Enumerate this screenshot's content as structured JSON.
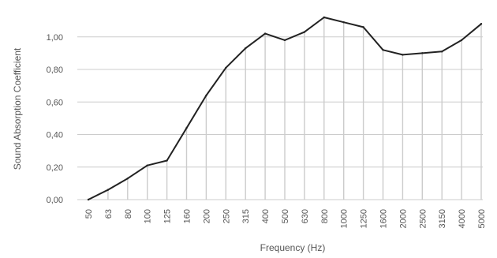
{
  "chart_data": {
    "type": "line",
    "title": "",
    "xlabel": "Frequency (Hz)",
    "ylabel": "Sound Absorption Coefficient",
    "x": [
      "50",
      "63",
      "80",
      "100",
      "125",
      "160",
      "200",
      "250",
      "315",
      "400",
      "500",
      "630",
      "800",
      "1000",
      "1250",
      "1600",
      "2000",
      "2500",
      "3150",
      "4000",
      "5000"
    ],
    "y": [
      0.0,
      0.06,
      0.13,
      0.21,
      0.24,
      0.44,
      0.64,
      0.81,
      0.93,
      1.02,
      0.98,
      1.03,
      1.12,
      1.09,
      1.06,
      0.92,
      0.89,
      0.9,
      0.91,
      0.98,
      1.08
    ],
    "yticks": [
      "0,00",
      "0,20",
      "0,40",
      "0,60",
      "0,80",
      "1,00"
    ],
    "ylim": [
      0,
      1.12
    ],
    "grid": {
      "horizontal": true,
      "vertical": true
    },
    "colors": {
      "line": "#222222",
      "grid": "#cccccc",
      "vertical_drop": "#cccccc",
      "text": "#555555"
    }
  }
}
